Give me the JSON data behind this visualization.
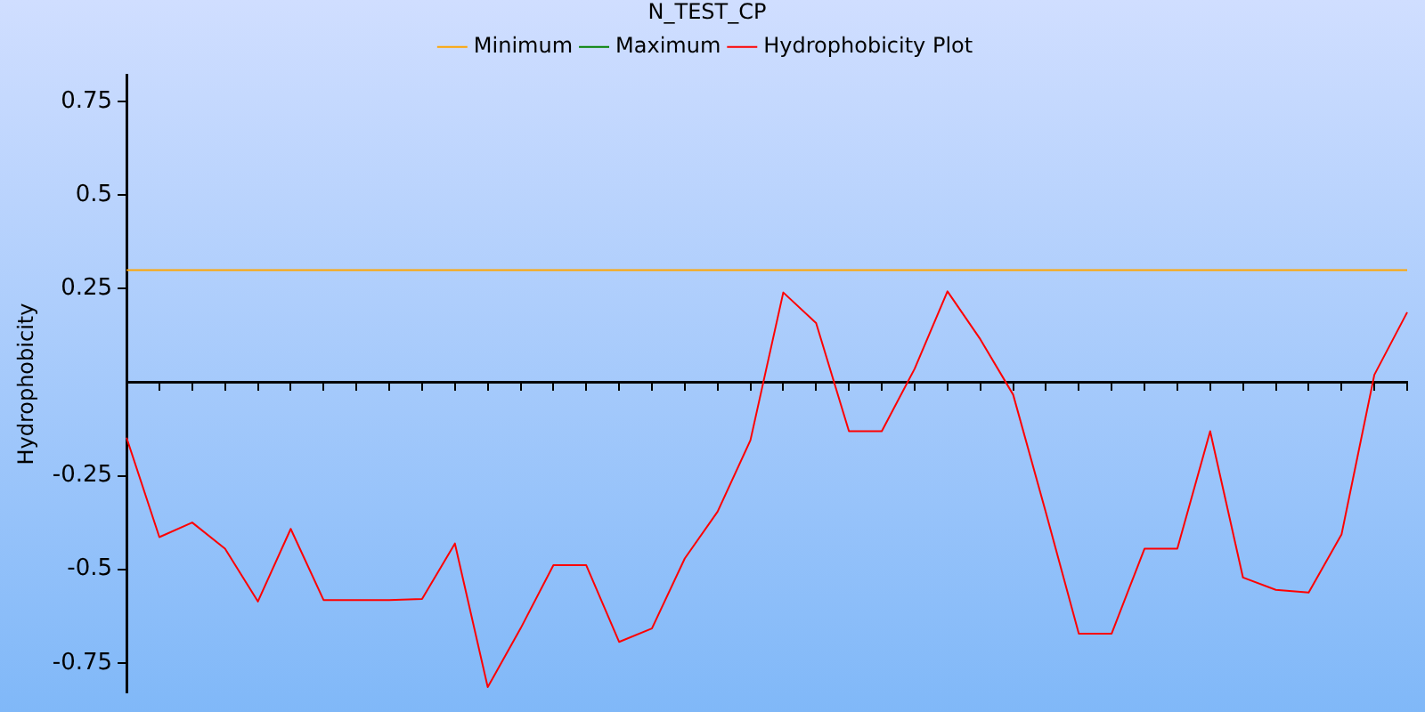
{
  "chart_data": {
    "type": "line",
    "title": "N_TEST_CP",
    "ylabel": "Hydrophobicity",
    "categories": [
      null,
      null,
      null,
      null,
      null,
      null,
      null,
      null,
      null,
      null,
      null,
      null,
      null,
      null,
      null,
      null,
      null,
      null,
      null,
      null,
      null,
      null,
      null,
      null,
      null,
      null,
      null,
      null,
      null,
      null,
      null,
      null,
      null,
      null,
      null,
      null,
      null,
      null,
      null,
      null
    ],
    "series": [
      {
        "name": "Minimum",
        "color": "#ffa500",
        "values": [
          0.3,
          0.3,
          0.3,
          0.3,
          0.3,
          0.3,
          0.3,
          0.3,
          0.3,
          0.3,
          0.3,
          0.3,
          0.3,
          0.3,
          0.3,
          0.3,
          0.3,
          0.3,
          0.3,
          0.3,
          0.3,
          0.3,
          0.3,
          0.3,
          0.3,
          0.3,
          0.3,
          0.3,
          0.3,
          0.3,
          0.3,
          0.3,
          0.3,
          0.3,
          0.3,
          0.3,
          0.3,
          0.3,
          0.3,
          0.3
        ]
      },
      {
        "name": "Maximum",
        "color": "#008000",
        "values": [
          null,
          null,
          null,
          null,
          null,
          null,
          null,
          null,
          null,
          null,
          null,
          null,
          null,
          null,
          null,
          null,
          null,
          null,
          null,
          null,
          null,
          null,
          null,
          null,
          null,
          null,
          null,
          null,
          null,
          null,
          null,
          null,
          null,
          null,
          null,
          null,
          null,
          null,
          null,
          null
        ]
      },
      {
        "name": "Hydrophobicity Plot",
        "color": "#ff0000",
        "values": [
          -0.148,
          -0.414,
          -0.375,
          -0.445,
          -0.586,
          -0.392,
          -0.582,
          -0.582,
          -0.582,
          -0.579,
          -0.431,
          -0.815,
          -0.658,
          -0.489,
          -0.489,
          -0.694,
          -0.658,
          -0.471,
          -0.346,
          -0.155,
          0.24,
          0.158,
          -0.131,
          -0.131,
          0.036,
          0.243,
          0.115,
          -0.033,
          -0.349,
          -0.672,
          -0.672,
          -0.445,
          -0.445,
          -0.131,
          -0.522,
          -0.555,
          -0.562,
          -0.407,
          0.02,
          0.187
        ]
      }
    ],
    "ylim": [
      -0.83,
      0.82
    ],
    "yticks": [
      0.75,
      0.5,
      0.25,
      -0.25,
      -0.5,
      -0.75
    ],
    "grid": false,
    "legend": "top",
    "marker": "none",
    "line_style": "solid",
    "tick_labels": "y"
  }
}
